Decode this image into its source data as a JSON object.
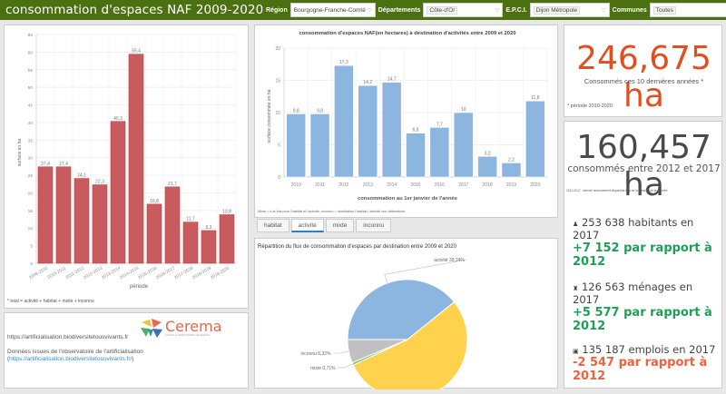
{
  "header": {
    "title": "consommation d'espaces NAF 2009-2020",
    "filters": [
      {
        "label": "Région",
        "value": "Bourgogne-Franche-Comté"
      },
      {
        "label": "Départements",
        "value": "Côte-d'Or"
      },
      {
        "label": "E.P.C.I.",
        "value": "Dijon Métropole"
      },
      {
        "label": "Communes",
        "value": "Toutes"
      }
    ]
  },
  "colors": {
    "header_bg": "#4b7010",
    "total_bar": "#c95b5f",
    "activity_bar": "#8cb6e0",
    "pie_activite": "#8cb6e0",
    "pie_habitat": "#ffd24d",
    "pie_inconnu": "#c0c0c0",
    "pie_mixte": "#7dc36b",
    "orange_kpi": "#e0501e",
    "positive": "#1f9e56",
    "negative": "#f2603c"
  },
  "left_chart_footnote": "* total = activité + habitat + mixte + inconnu",
  "middle_chart_footnote": "Mixte = à la fois pour l'habitat et l'activité. Inconnu = destination l'habitat / activité non déterminée",
  "tabs": [
    {
      "label": "habitat",
      "active": false
    },
    {
      "label": "activité",
      "active": true
    },
    {
      "label": "mixte",
      "active": false
    },
    {
      "label": "inconnu",
      "active": false
    }
  ],
  "info": {
    "url_text": "https://artificialisation.biodiversitetousvivants.fr",
    "source_prefix": "Données issues de l'observatoire de l'artificialisation",
    "source_link_open": "(",
    "source_link": "https://artificialisation.biodiversitetousvivants.fr/",
    "source_link_close": ")",
    "logo_text": "Cerema",
    "logo_tagline": "CLIMAT & TERRITOIRES DE DEMAIN"
  },
  "kpi1": {
    "value": "246,675 ha",
    "caption": "Consommés ces 10 dernières années *",
    "note": "* période 2010-2020"
  },
  "kpi2": {
    "value": "160,457 ha",
    "caption": "consommés entre 2012 et 2017",
    "note": "2012-2017 : dernier recensement disponible lors de la création de la donnée"
  },
  "stats": [
    {
      "icon": "person-icon",
      "glyph": "👤",
      "line": "253 638 habitants en 2017",
      "diff": "+7 152 par rapport à 2012",
      "trend": "positive"
    },
    {
      "icon": "household-icon",
      "glyph": "👪",
      "line": "126 563 ménages en 2017",
      "diff": "+5 577 par rapport à 2012",
      "trend": "positive"
    },
    {
      "icon": "briefcase-icon",
      "glyph": "💼",
      "line": "135 187 emplois en 2017",
      "diff": "-2 547 par rapport à 2012",
      "trend": "negative"
    }
  ],
  "chart_data": [
    {
      "type": "bar",
      "title": "",
      "xlabel": "période",
      "ylabel": "surface en ha",
      "ylim": [
        0,
        65
      ],
      "yticks": [
        0,
        5,
        10,
        15,
        20,
        25,
        30,
        35,
        40,
        45,
        50,
        55,
        60,
        65
      ],
      "grid": true,
      "categories": [
        "2009-2010",
        "2010-2011",
        "2011-2012",
        "2012-2013",
        "2013-2014",
        "2014-2015",
        "2015-2016",
        "2016-2017",
        "2017-2018",
        "2018-2019",
        "2019-2020"
      ],
      "values": [
        27.4,
        27.4,
        24.1,
        22.3,
        40.3,
        59.4,
        16.8,
        21.7,
        11.7,
        9.3,
        13.8
      ],
      "labels": [
        "27,4",
        "27,4",
        "24,1",
        "22,3",
        "40,3",
        "59,4",
        "16,8",
        "21,7",
        "11,7",
        "9,3",
        "13,8"
      ]
    },
    {
      "type": "bar",
      "title": "consommation d'espaces NAF(en hectares) à destination d'activités entre 2009 et 2020",
      "xlabel": "consommation au 1er janvier de l'année",
      "ylabel": "surface consommée en ha",
      "ylim": [
        0,
        20
      ],
      "yticks": [
        0,
        5,
        10,
        15,
        20
      ],
      "grid": true,
      "categories": [
        "2010",
        "2011",
        "2012",
        "2013",
        "2014",
        "2015",
        "2016",
        "2017",
        "2018",
        "2019",
        "2020"
      ],
      "values": [
        9.8,
        9.8,
        17.3,
        14.2,
        14.7,
        6.8,
        7.7,
        10,
        3.2,
        2.2,
        11.8
      ],
      "labels": [
        "9,8",
        "9,8",
        "17,3",
        "14,2",
        "14,7",
        "6,8",
        "7,7",
        "10",
        "3,2",
        "2,2",
        "11,8"
      ]
    },
    {
      "type": "pie",
      "title": "Répartition du flux de consommation d'espaces par destination entre 2009 et 2020",
      "slices": [
        {
          "name": "activité",
          "value": 39.24,
          "label": "activité 39,24%"
        },
        {
          "name": "habitat",
          "value": 53.73,
          "label": "habitat 53,73%"
        },
        {
          "name": "mixte",
          "value": 0.71,
          "label": "mixte 0,71%"
        },
        {
          "name": "inconnu",
          "value": 6.32,
          "label": "inconnu 6,32%"
        }
      ]
    }
  ]
}
